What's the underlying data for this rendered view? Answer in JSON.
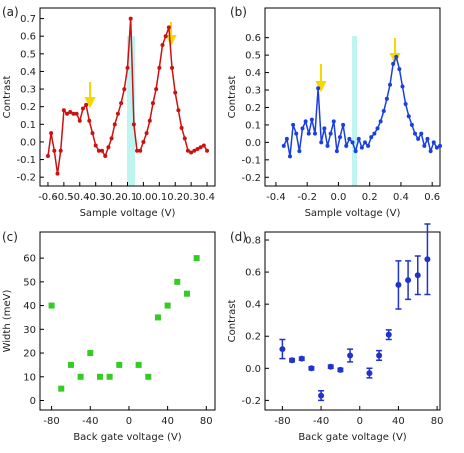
{
  "chart_data": [
    {
      "type": "line",
      "panel_label": "(a)",
      "xlabel": "Sample voltage (V)",
      "ylabel": "Contrast",
      "color": "#cc1111",
      "x": [
        -0.6,
        -0.58,
        -0.56,
        -0.54,
        -0.52,
        -0.5,
        -0.48,
        -0.46,
        -0.44,
        -0.42,
        -0.4,
        -0.38,
        -0.36,
        -0.34,
        -0.32,
        -0.3,
        -0.28,
        -0.26,
        -0.24,
        -0.22,
        -0.2,
        -0.18,
        -0.16,
        -0.14,
        -0.12,
        -0.1,
        -0.08,
        -0.06,
        -0.04,
        -0.02,
        0.0,
        0.02,
        0.04,
        0.06,
        0.08,
        0.1,
        0.12,
        0.14,
        0.16,
        0.18,
        0.2,
        0.22,
        0.24,
        0.26,
        0.28,
        0.3,
        0.32,
        0.34,
        0.36,
        0.38,
        0.4
      ],
      "values": [
        -0.08,
        0.05,
        -0.05,
        -0.18,
        -0.05,
        0.18,
        0.16,
        0.17,
        0.16,
        0.16,
        0.12,
        0.19,
        0.21,
        0.12,
        0.05,
        -0.02,
        -0.05,
        -0.05,
        -0.08,
        -0.03,
        0.02,
        0.1,
        0.16,
        0.22,
        0.3,
        0.42,
        0.7,
        0.1,
        -0.05,
        -0.05,
        0.0,
        0.05,
        0.12,
        0.22,
        0.3,
        0.42,
        0.55,
        0.6,
        0.65,
        0.42,
        0.28,
        0.18,
        0.08,
        0.02,
        -0.05,
        -0.06,
        -0.05,
        -0.04,
        -0.03,
        -0.02,
        -0.05
      ],
      "xlim": [
        -0.65,
        0.45
      ],
      "ylim": [
        -0.25,
        0.76
      ],
      "xticks": [
        -0.6,
        -0.5,
        -0.4,
        -0.3,
        -0.2,
        -0.1,
        {
          "value": 0,
          "label": "0.0"
        },
        0.1,
        0.2,
        0.3,
        0.4
      ],
      "yticks": [
        -0.2,
        -0.1,
        {
          "value": 0,
          "label": "0.0"
        },
        0.1,
        0.2,
        0.3,
        0.4,
        0.5,
        0.6,
        0.7
      ]
    },
    {
      "type": "line",
      "panel_label": "(b)",
      "xlabel": "Sample voltage (V)",
      "ylabel": "Contrast",
      "color": "#1a3fe0",
      "x": [
        -0.35,
        -0.33,
        -0.31,
        -0.29,
        -0.27,
        -0.25,
        -0.23,
        -0.21,
        -0.19,
        -0.17,
        -0.15,
        -0.13,
        -0.11,
        -0.09,
        -0.07,
        -0.05,
        -0.03,
        -0.01,
        0.01,
        0.03,
        0.05,
        0.07,
        0.09,
        0.11,
        0.13,
        0.15,
        0.17,
        0.19,
        0.21,
        0.23,
        0.25,
        0.27,
        0.29,
        0.31,
        0.33,
        0.35,
        0.37,
        0.39,
        0.41,
        0.43,
        0.45,
        0.47,
        0.49,
        0.51,
        0.53,
        0.55,
        0.57,
        0.59,
        0.61,
        0.63,
        0.65
      ],
      "values": [
        -0.02,
        0.02,
        -0.08,
        0.1,
        0.05,
        -0.05,
        0.08,
        0.12,
        0.05,
        0.13,
        0.05,
        0.31,
        0.0,
        0.08,
        -0.02,
        0.05,
        0.12,
        -0.05,
        0.03,
        0.1,
        -0.02,
        0.02,
        0.0,
        -0.05,
        0.02,
        -0.03,
        0.0,
        -0.02,
        0.03,
        0.05,
        0.08,
        0.12,
        0.18,
        0.25,
        0.33,
        0.45,
        0.49,
        0.42,
        0.32,
        0.22,
        0.15,
        0.1,
        0.05,
        0.02,
        0.05,
        -0.02,
        0.02,
        -0.05,
        0.0,
        -0.03,
        -0.02
      ],
      "xlim": [
        -0.47,
        0.65
      ],
      "ylim": [
        -0.25,
        0.77
      ],
      "xticks": [
        -0.4,
        -0.2,
        {
          "value": 0,
          "label": "0.0"
        },
        0.2,
        0.4,
        0.6
      ],
      "yticks": [
        -0.2,
        -0.1,
        {
          "value": 0,
          "label": "0.0"
        },
        0.1,
        0.2,
        0.3,
        0.4,
        0.5,
        0.6
      ]
    },
    {
      "type": "scatter",
      "panel_label": "(c)",
      "xlabel": "Back gate voltage (V)",
      "ylabel": "Width (meV)",
      "color": "#33cc22",
      "x": [
        -80,
        -70,
        -60,
        -50,
        -40,
        -30,
        -20,
        -10,
        10,
        20,
        30,
        40,
        50,
        60,
        70
      ],
      "values": [
        40,
        5,
        15,
        10,
        20,
        10,
        10,
        15,
        15,
        10,
        35,
        40,
        50,
        45,
        60
      ],
      "xlim": [
        -92,
        89
      ],
      "ylim": [
        -4,
        71
      ],
      "xticks": [
        -80,
        -40,
        0,
        40,
        80
      ],
      "yticks": [
        0,
        10,
        20,
        30,
        40,
        50,
        60
      ]
    },
    {
      "type": "errorbar",
      "panel_label": "(d)",
      "xlabel": "Back gate voltage (V)",
      "ylabel": "Contrast",
      "color": "#2233cc",
      "x": [
        -80,
        -70,
        -60,
        -50,
        -40,
        -30,
        -20,
        -10,
        10,
        20,
        30,
        40,
        50,
        60,
        70
      ],
      "values": [
        0.12,
        0.05,
        0.06,
        0.0,
        -0.17,
        0.01,
        -0.01,
        0.08,
        -0.03,
        0.08,
        0.21,
        0.52,
        0.55,
        0.58,
        0.68
      ],
      "errors": [
        0.06,
        0.01,
        0.01,
        0.01,
        0.03,
        0.01,
        0.01,
        0.04,
        0.03,
        0.03,
        0.03,
        0.15,
        0.12,
        0.12,
        0.22
      ],
      "xlim": [
        -98,
        83
      ],
      "ylim": [
        -0.26,
        0.85
      ],
      "xticks": [
        -80,
        -40,
        0,
        40,
        80
      ],
      "yticks": [
        -0.2,
        {
          "value": 0,
          "label": "0.0"
        },
        0.2,
        0.4,
        0.6,
        0.8
      ]
    }
  ]
}
